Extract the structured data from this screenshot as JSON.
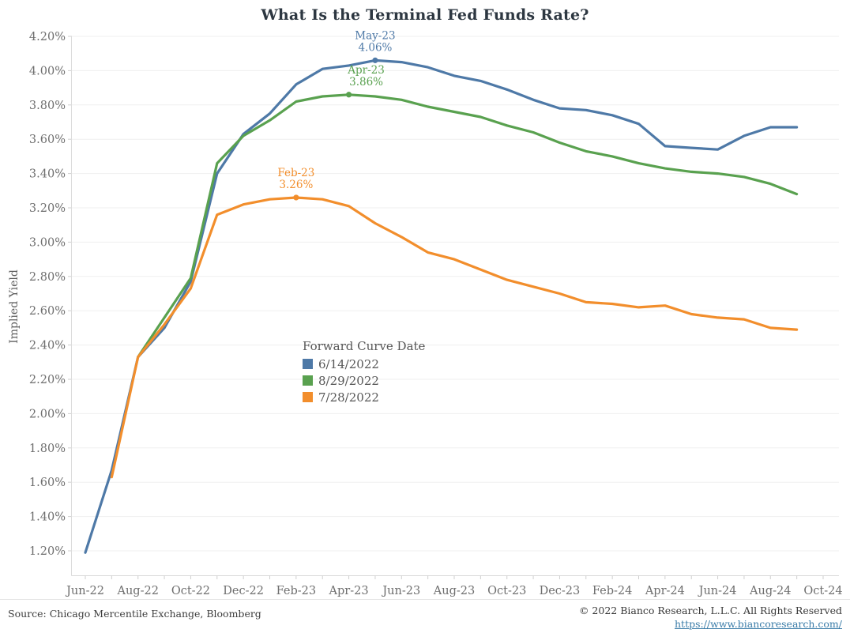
{
  "title": "What Is the Terminal Fed Funds Rate?",
  "chart_data": {
    "type": "line",
    "title": "What Is the Terminal Fed Funds Rate?",
    "ylabel": "Implied Yield",
    "legend_title": "Forward Curve Date",
    "grid": true,
    "legend_position": "center-inside",
    "ylim": [
      1.2,
      4.2
    ],
    "y_tick_step": 0.2,
    "y_tick_labels": [
      "4.20%",
      "4.00%",
      "3.80%",
      "3.60%",
      "3.40%",
      "3.20%",
      "3.00%",
      "2.80%",
      "2.60%",
      "2.40%",
      "2.20%",
      "2.00%",
      "1.80%",
      "1.60%",
      "1.40%",
      "1.20%"
    ],
    "x_tick_labels": [
      "Jun-22",
      "Aug-22",
      "Oct-22",
      "Dec-22",
      "Feb-23",
      "Apr-23",
      "Jun-23",
      "Aug-23",
      "Oct-23",
      "Dec-23",
      "Feb-24",
      "Apr-24",
      "Jun-24",
      "Aug-24",
      "Oct-24"
    ],
    "x_months": [
      "Jun-22",
      "Jul-22",
      "Aug-22",
      "Sep-22",
      "Oct-22",
      "Nov-22",
      "Dec-22",
      "Jan-23",
      "Feb-23",
      "Mar-23",
      "Apr-23",
      "May-23",
      "Jun-23",
      "Jul-23",
      "Aug-23",
      "Sep-23",
      "Oct-23",
      "Nov-23",
      "Dec-23",
      "Jan-24",
      "Feb-24",
      "Mar-24",
      "Apr-24",
      "May-24",
      "Jun-24",
      "Jul-24",
      "Aug-24",
      "Sep-24"
    ],
    "series": [
      {
        "name": "6/14/2022",
        "color": "#4e79a7",
        "start_month": "Jun-22",
        "values": [
          1.19,
          1.67,
          2.33,
          2.5,
          2.77,
          3.4,
          3.63,
          3.75,
          3.92,
          4.01,
          4.03,
          4.06,
          4.05,
          4.02,
          3.97,
          3.94,
          3.89,
          3.83,
          3.78,
          3.77,
          3.74,
          3.69,
          3.56,
          3.55,
          3.54,
          3.62,
          3.67,
          3.67
        ]
      },
      {
        "name": "8/29/2022",
        "color": "#59a14f",
        "start_month": "Aug-22",
        "values": [
          2.33,
          2.56,
          2.79,
          3.46,
          3.62,
          3.71,
          3.82,
          3.85,
          3.86,
          3.85,
          3.83,
          3.79,
          3.76,
          3.73,
          3.68,
          3.64,
          3.58,
          3.53,
          3.5,
          3.46,
          3.43,
          3.41,
          3.4,
          3.38,
          3.34,
          3.28
        ]
      },
      {
        "name": "7/28/2022",
        "color": "#f28e2c",
        "start_month": "Jul-22",
        "values": [
          1.63,
          2.33,
          2.52,
          2.73,
          3.16,
          3.22,
          3.25,
          3.26,
          3.25,
          3.21,
          3.11,
          3.03,
          2.94,
          2.9,
          2.84,
          2.78,
          2.74,
          2.7,
          2.65,
          2.64,
          2.62,
          2.63,
          2.58,
          2.56,
          2.55,
          2.5,
          2.49
        ]
      }
    ],
    "annotations": [
      {
        "series": "6/14/2022",
        "month": "May-23",
        "value": 4.06,
        "text_line1": "May-23",
        "text_line2": "4.06%",
        "dx": 0
      },
      {
        "series": "8/29/2022",
        "month": "Apr-23",
        "value": 3.86,
        "text_line1": "Apr-23",
        "text_line2": "3.86%",
        "dx": 22
      },
      {
        "series": "7/28/2022",
        "month": "Feb-23",
        "value": 3.26,
        "text_line1": "Feb-23",
        "text_line2": "3.26%",
        "dx": 0
      }
    ]
  },
  "footer": {
    "source": "Source: Chicago Mercentile Exchange, Bloomberg",
    "copyright": "© 2022 Bianco Research, L.L.C. All Rights Reserved",
    "url": "https://www.biancoresearch.com/"
  }
}
